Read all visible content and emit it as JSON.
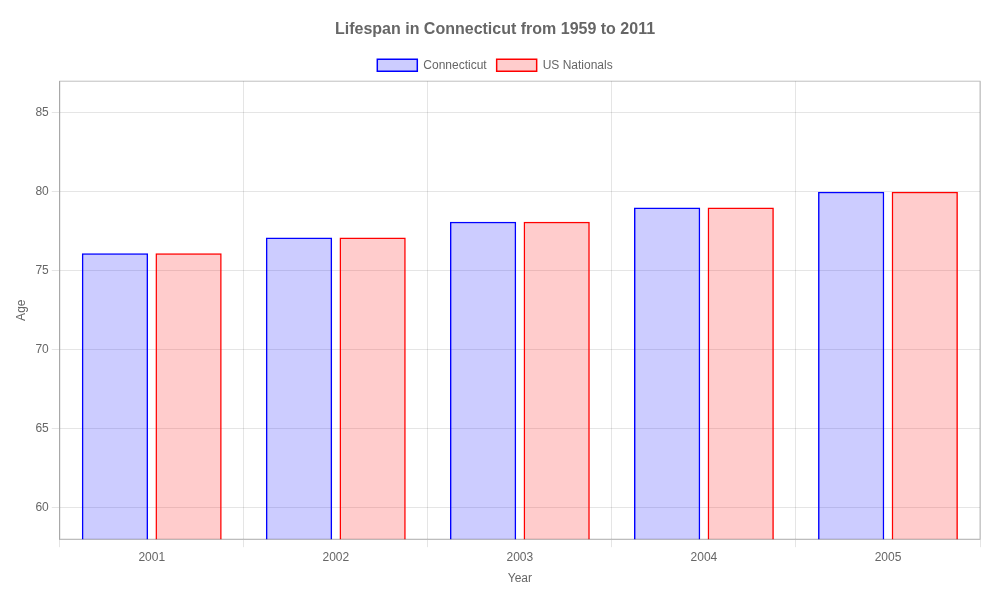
{
  "chart_data": {
    "type": "bar",
    "title": "Lifespan in Connecticut from 1959 to 2011",
    "x_label": "Year",
    "y_label": "Age",
    "categories": [
      2001,
      2002,
      2003,
      2004,
      2005
    ],
    "series": [
      {
        "name": "Connecticut",
        "color": "#0000ff",
        "values": [
          76.1,
          77.1,
          78.1,
          79.0,
          80.0
        ]
      },
      {
        "name": "US Nationals",
        "color": "#ff0000",
        "values": [
          76.1,
          77.1,
          78.1,
          79.0,
          80.0
        ]
      }
    ],
    "ylim": [
      58,
      87
    ],
    "yticks": [
      60,
      65,
      70,
      75,
      80,
      85
    ],
    "grid": true,
    "legend": "top"
  }
}
